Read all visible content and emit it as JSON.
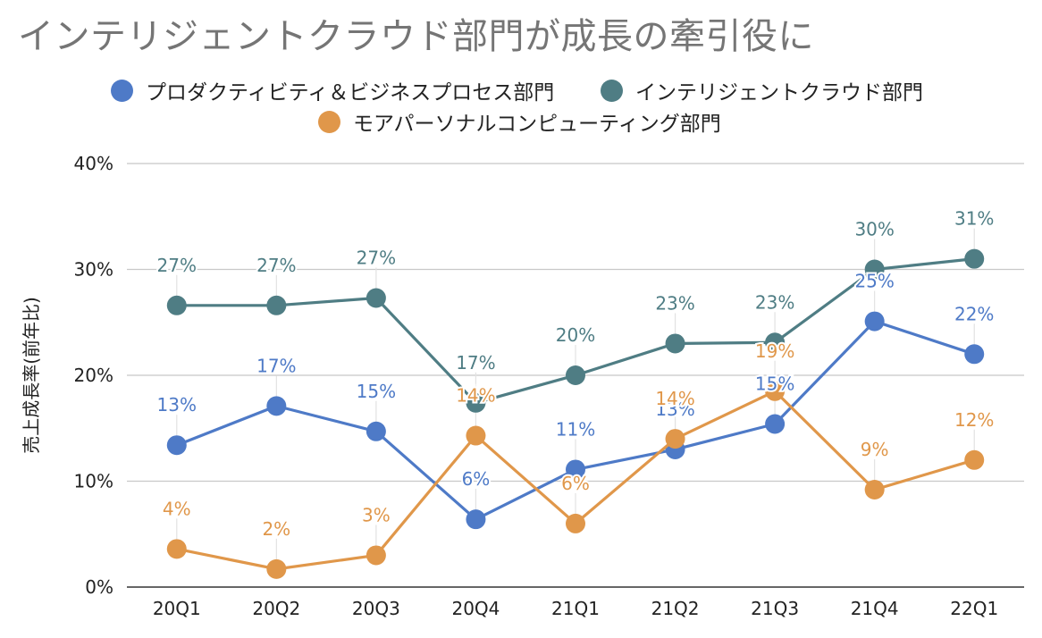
{
  "chart_data": {
    "type": "line",
    "title": "インテリジェントクラウド部門が成長の牽引役に",
    "ylabel": "売上成長率(前年比)",
    "xlabel": "",
    "categories": [
      "20Q1",
      "20Q2",
      "20Q3",
      "20Q4",
      "21Q1",
      "21Q2",
      "21Q3",
      "21Q4",
      "22Q1"
    ],
    "y_ticks": [
      "0%",
      "10%",
      "20%",
      "30%",
      "40%"
    ],
    "ylim": [
      0,
      40
    ],
    "grid": true,
    "legend_position": "top",
    "series": [
      {
        "name": "プロダクティビティ＆ビジネスプロセス部門",
        "color": "#4e7ac7",
        "values": [
          13.4,
          17.1,
          14.7,
          6.4,
          11.1,
          13.0,
          15.4,
          25.1,
          22.0
        ],
        "labels": [
          "13%",
          "17%",
          "15%",
          "6%",
          "11%",
          "13%",
          "15%",
          "25%",
          "22%"
        ]
      },
      {
        "name": "インテリジェントクラウド部門",
        "color": "#4f7d84",
        "values": [
          26.6,
          26.6,
          27.3,
          17.4,
          20.0,
          23.0,
          23.1,
          30.0,
          31.0
        ],
        "labels": [
          "27%",
          "27%",
          "27%",
          "17%",
          "20%",
          "23%",
          "23%",
          "30%",
          "31%"
        ]
      },
      {
        "name": "モアパーソナルコンピューティング部門",
        "color": "#e0974a",
        "values": [
          3.6,
          1.7,
          3.0,
          14.3,
          6.0,
          14.0,
          18.5,
          9.2,
          12.0
        ],
        "labels": [
          "4%",
          "2%",
          "3%",
          "14%",
          "6%",
          "14%",
          "19%",
          "9%",
          "12%"
        ]
      }
    ]
  }
}
